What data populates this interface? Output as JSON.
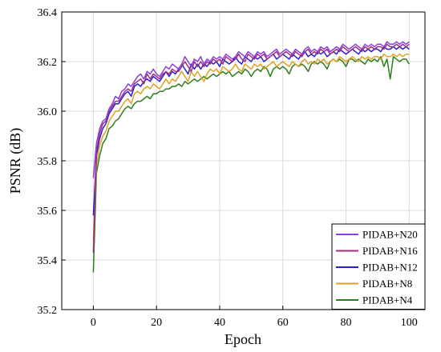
{
  "chart_data": {
    "type": "line",
    "xlabel": "Epoch",
    "ylabel": "PSNR (dB)",
    "xlim": [
      -10,
      105
    ],
    "ylim": [
      35.2,
      36.4
    ],
    "xticks": [
      "0",
      "20",
      "40",
      "60",
      "80",
      "100"
    ],
    "yticks": [
      "35.2",
      "35.4",
      "35.6",
      "35.8",
      "36.0",
      "36.2",
      "36.4"
    ],
    "grid": true,
    "legend_position": "bottom-right",
    "series": [
      {
        "name": "PIDAB+N20",
        "color": "#8B3FE0",
        "x": [
          0,
          1,
          2,
          3,
          4,
          5,
          6,
          7,
          8,
          9,
          10,
          11,
          12,
          13,
          14,
          15,
          16,
          17,
          18,
          19,
          20,
          21,
          22,
          23,
          24,
          25,
          26,
          27,
          28,
          29,
          30,
          31,
          32,
          33,
          34,
          35,
          36,
          37,
          38,
          39,
          40,
          41,
          42,
          43,
          44,
          45,
          46,
          47,
          48,
          49,
          50,
          51,
          52,
          53,
          54,
          55,
          56,
          57,
          58,
          59,
          60,
          61,
          62,
          63,
          64,
          65,
          66,
          67,
          68,
          69,
          70,
          71,
          72,
          73,
          74,
          75,
          76,
          77,
          78,
          79,
          80,
          81,
          82,
          83,
          84,
          85,
          86,
          87,
          88,
          89,
          90,
          91,
          92,
          93,
          94,
          95,
          96,
          97,
          98,
          99,
          100
        ],
        "values": [
          35.73,
          35.87,
          35.93,
          35.96,
          35.97,
          36.01,
          36.03,
          36.06,
          36.05,
          36.08,
          36.09,
          36.11,
          36.1,
          36.12,
          36.14,
          36.15,
          36.13,
          36.16,
          36.15,
          36.17,
          36.15,
          36.14,
          36.16,
          36.18,
          36.17,
          36.19,
          36.18,
          36.17,
          36.19,
          36.22,
          36.2,
          36.18,
          36.21,
          36.2,
          36.22,
          36.19,
          36.21,
          36.2,
          36.22,
          36.21,
          36.22,
          36.21,
          36.23,
          36.22,
          36.21,
          36.22,
          36.24,
          36.23,
          36.22,
          36.24,
          36.23,
          36.22,
          36.24,
          36.23,
          36.24,
          36.22,
          36.23,
          36.24,
          36.25,
          36.23,
          36.24,
          36.25,
          36.24,
          36.23,
          36.25,
          36.24,
          36.23,
          36.25,
          36.26,
          36.24,
          36.25,
          36.24,
          36.26,
          36.25,
          36.26,
          36.24,
          36.25,
          36.26,
          36.25,
          36.27,
          36.26,
          36.25,
          36.26,
          36.27,
          36.26,
          36.25,
          36.27,
          36.26,
          36.27,
          36.26,
          36.27,
          36.27,
          36.26,
          36.28,
          36.27,
          36.27,
          36.28,
          36.27,
          36.28,
          36.27,
          36.28
        ]
      },
      {
        "name": "PIDAB+N16",
        "color": "#A0307A",
        "x": [
          0,
          1,
          2,
          3,
          4,
          5,
          6,
          7,
          8,
          9,
          10,
          11,
          12,
          13,
          14,
          15,
          16,
          17,
          18,
          19,
          20,
          21,
          22,
          23,
          24,
          25,
          26,
          27,
          28,
          29,
          30,
          31,
          32,
          33,
          34,
          35,
          36,
          37,
          38,
          39,
          40,
          41,
          42,
          43,
          44,
          45,
          46,
          47,
          48,
          49,
          50,
          51,
          52,
          53,
          54,
          55,
          56,
          57,
          58,
          59,
          60,
          61,
          62,
          63,
          64,
          65,
          66,
          67,
          68,
          69,
          70,
          71,
          72,
          73,
          74,
          75,
          76,
          77,
          78,
          79,
          80,
          81,
          82,
          83,
          84,
          85,
          86,
          87,
          88,
          89,
          90,
          91,
          92,
          93,
          94,
          95,
          96,
          97,
          98,
          99,
          100
        ],
        "values": [
          35.43,
          35.84,
          35.91,
          35.95,
          35.96,
          36.0,
          36.02,
          36.04,
          36.04,
          36.06,
          36.08,
          36.09,
          36.08,
          36.11,
          36.12,
          36.13,
          36.11,
          36.15,
          36.13,
          36.15,
          36.14,
          36.13,
          36.15,
          36.16,
          36.15,
          36.17,
          36.16,
          36.16,
          36.18,
          36.2,
          36.18,
          36.16,
          36.2,
          36.18,
          36.2,
          36.18,
          36.2,
          36.19,
          36.21,
          36.2,
          36.21,
          36.19,
          36.22,
          36.21,
          36.2,
          36.21,
          36.23,
          36.21,
          36.2,
          36.23,
          36.22,
          36.21,
          36.23,
          36.22,
          36.23,
          36.21,
          36.22,
          36.23,
          36.24,
          36.22,
          36.23,
          36.24,
          36.23,
          36.22,
          36.24,
          36.23,
          36.22,
          36.24,
          36.25,
          36.23,
          36.24,
          36.23,
          36.25,
          36.24,
          36.25,
          36.23,
          36.24,
          36.25,
          36.24,
          36.26,
          36.25,
          36.24,
          36.25,
          36.26,
          36.25,
          36.24,
          36.26,
          36.25,
          36.26,
          36.25,
          36.26,
          36.26,
          36.25,
          36.27,
          36.26,
          36.26,
          36.27,
          36.26,
          36.27,
          36.26,
          36.27
        ]
      },
      {
        "name": "PIDAB+N12",
        "color": "#2A1FD0",
        "x": [
          0,
          1,
          2,
          3,
          4,
          5,
          6,
          7,
          8,
          9,
          10,
          11,
          12,
          13,
          14,
          15,
          16,
          17,
          18,
          19,
          20,
          21,
          22,
          23,
          24,
          25,
          26,
          27,
          28,
          29,
          30,
          31,
          32,
          33,
          34,
          35,
          36,
          37,
          38,
          39,
          40,
          41,
          42,
          43,
          44,
          45,
          46,
          47,
          48,
          49,
          50,
          51,
          52,
          53,
          54,
          55,
          56,
          57,
          58,
          59,
          60,
          61,
          62,
          63,
          64,
          65,
          66,
          67,
          68,
          69,
          70,
          71,
          72,
          73,
          74,
          75,
          76,
          77,
          78,
          79,
          80,
          81,
          82,
          83,
          84,
          85,
          86,
          87,
          88,
          89,
          90,
          91,
          92,
          93,
          94,
          95,
          96,
          97,
          98,
          99,
          100
        ],
        "values": [
          35.58,
          35.82,
          35.89,
          35.93,
          35.95,
          35.99,
          36.01,
          36.03,
          36.03,
          36.05,
          36.07,
          36.08,
          36.06,
          36.1,
          36.11,
          36.1,
          36.12,
          36.13,
          36.12,
          36.14,
          36.13,
          36.12,
          36.14,
          36.16,
          36.14,
          36.16,
          36.15,
          36.17,
          36.19,
          36.17,
          36.15,
          36.19,
          36.17,
          36.19,
          36.17,
          36.19,
          36.18,
          36.2,
          36.19,
          36.2,
          36.18,
          36.21,
          36.2,
          36.19,
          36.2,
          36.22,
          36.2,
          36.19,
          36.22,
          36.21,
          36.2,
          36.22,
          36.21,
          36.22,
          36.2,
          36.21,
          36.22,
          36.23,
          36.21,
          36.22,
          36.23,
          36.22,
          36.21,
          36.23,
          36.22,
          36.21,
          36.23,
          36.24,
          36.22,
          36.23,
          36.22,
          36.24,
          36.23,
          36.24,
          36.22,
          36.23,
          36.24,
          36.23,
          36.25,
          36.24,
          36.23,
          36.24,
          36.25,
          36.24,
          36.23,
          36.25,
          36.24,
          36.25,
          36.24,
          36.25,
          36.25,
          36.24,
          36.26,
          36.25,
          36.25,
          36.26,
          36.25,
          36.26,
          36.25,
          36.26,
          36.25
        ]
      },
      {
        "name": "PIDAB+N8",
        "color": "#E0A020",
        "x": [
          0,
          1,
          2,
          3,
          4,
          5,
          6,
          7,
          8,
          9,
          10,
          11,
          12,
          13,
          14,
          15,
          16,
          17,
          18,
          19,
          20,
          21,
          22,
          23,
          24,
          25,
          26,
          27,
          28,
          29,
          30,
          31,
          32,
          33,
          34,
          35,
          36,
          37,
          38,
          39,
          40,
          41,
          42,
          43,
          44,
          45,
          46,
          47,
          48,
          49,
          50,
          51,
          52,
          53,
          54,
          55,
          56,
          57,
          58,
          59,
          60,
          61,
          62,
          63,
          64,
          65,
          66,
          67,
          68,
          69,
          70,
          71,
          72,
          73,
          74,
          75,
          76,
          77,
          78,
          79,
          80,
          81,
          82,
          83,
          84,
          85,
          86,
          87,
          88,
          89,
          90,
          91,
          92,
          93,
          94,
          95,
          96,
          97,
          98,
          99,
          100
        ],
        "values": [
          35.48,
          35.78,
          35.86,
          35.9,
          35.92,
          35.96,
          35.98,
          36.0,
          36.0,
          36.02,
          36.04,
          36.05,
          36.03,
          36.07,
          36.08,
          36.07,
          36.09,
          36.1,
          36.09,
          36.11,
          36.1,
          36.09,
          36.11,
          36.13,
          36.11,
          36.13,
          36.12,
          36.14,
          36.16,
          36.14,
          36.12,
          36.16,
          36.14,
          36.16,
          36.14,
          36.12,
          36.15,
          36.17,
          36.16,
          36.17,
          36.15,
          36.18,
          36.17,
          36.16,
          36.17,
          36.19,
          36.17,
          36.16,
          36.19,
          36.18,
          36.17,
          36.19,
          36.18,
          36.19,
          36.17,
          36.18,
          36.19,
          36.2,
          36.18,
          36.19,
          36.2,
          36.19,
          36.18,
          36.2,
          36.19,
          36.18,
          36.2,
          36.21,
          36.19,
          36.2,
          36.19,
          36.21,
          36.2,
          36.21,
          36.19,
          36.2,
          36.21,
          36.2,
          36.22,
          36.21,
          36.2,
          36.21,
          36.22,
          36.21,
          36.2,
          36.22,
          36.21,
          36.22,
          36.21,
          36.22,
          36.22,
          36.21,
          36.23,
          36.22,
          36.22,
          36.23,
          36.22,
          36.23,
          36.22,
          36.23,
          36.23
        ]
      },
      {
        "name": "PIDAB+N4",
        "color": "#2E7D1F",
        "x": [
          0,
          1,
          2,
          3,
          4,
          5,
          6,
          7,
          8,
          9,
          10,
          11,
          12,
          13,
          14,
          15,
          16,
          17,
          18,
          19,
          20,
          21,
          22,
          23,
          24,
          25,
          26,
          27,
          28,
          29,
          30,
          31,
          32,
          33,
          34,
          35,
          36,
          37,
          38,
          39,
          40,
          41,
          42,
          43,
          44,
          45,
          46,
          47,
          48,
          49,
          50,
          51,
          52,
          53,
          54,
          55,
          56,
          57,
          58,
          59,
          60,
          61,
          62,
          63,
          64,
          65,
          66,
          67,
          68,
          69,
          70,
          71,
          72,
          73,
          74,
          75,
          76,
          77,
          78,
          79,
          80,
          81,
          82,
          83,
          84,
          85,
          86,
          87,
          88,
          89,
          90,
          91,
          92,
          93,
          94,
          95,
          96,
          97,
          98,
          99,
          100
        ],
        "values": [
          35.35,
          35.75,
          35.82,
          35.87,
          35.89,
          35.93,
          35.94,
          35.96,
          35.97,
          35.99,
          36.01,
          36.02,
          36.01,
          36.03,
          36.04,
          36.04,
          36.05,
          36.06,
          36.05,
          36.07,
          36.07,
          36.08,
          36.08,
          36.09,
          36.09,
          36.1,
          36.1,
          36.11,
          36.1,
          36.12,
          36.11,
          36.12,
          36.13,
          36.12,
          36.13,
          36.14,
          36.13,
          36.14,
          36.15,
          36.14,
          36.15,
          36.16,
          36.15,
          36.16,
          36.14,
          36.15,
          36.16,
          36.15,
          36.17,
          36.16,
          36.14,
          36.16,
          36.17,
          36.16,
          36.18,
          36.17,
          36.14,
          36.17,
          36.18,
          36.17,
          36.18,
          36.17,
          36.15,
          36.18,
          36.19,
          36.18,
          36.19,
          36.18,
          36.16,
          36.19,
          36.2,
          36.19,
          36.2,
          36.19,
          36.17,
          36.2,
          36.21,
          36.2,
          36.21,
          36.2,
          36.18,
          36.21,
          36.21,
          36.2,
          36.21,
          36.2,
          36.19,
          36.21,
          36.2,
          36.21,
          36.2,
          36.22,
          36.18,
          36.21,
          36.13,
          36.22,
          36.21,
          36.2,
          36.21,
          36.21,
          36.19
        ]
      }
    ]
  }
}
